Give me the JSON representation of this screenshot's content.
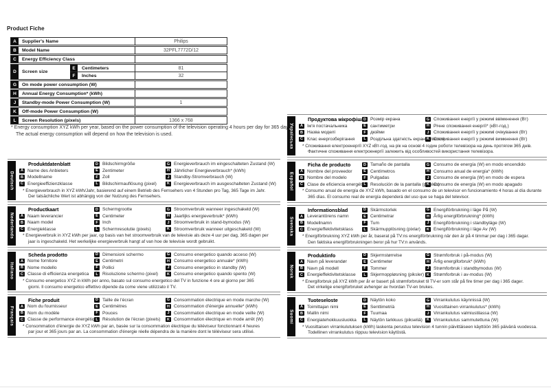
{
  "page": {
    "heading": "Product Fiche"
  },
  "keys": {
    "a": "A",
    "b": "B",
    "c": "C",
    "d": "D",
    "e": "E",
    "f": "F",
    "g": "G",
    "h": "H",
    "j": "J",
    "k": "K",
    "l": "L"
  },
  "table": {
    "rows_top": [
      {
        "key": "A",
        "label": "Supplier's Name",
        "value": "Philips"
      },
      {
        "key": "B",
        "label": "Model Name",
        "value": "32PFL7772D/12"
      },
      {
        "key": "C",
        "label": "Energy Efficiency Class",
        "value": ""
      }
    ],
    "screen": {
      "key": "D",
      "label": "Screen size",
      "cm_key": "E",
      "cm_label": "Centimeters",
      "cm_value": "81",
      "in_key": "F",
      "in_label": "Inches",
      "in_value": "32"
    },
    "rows_bottom": [
      {
        "key": "G",
        "label": "On mode power consumption (W)",
        "value": ""
      },
      {
        "key": "H",
        "label": "Annual Energy Consumption* (kWh)",
        "value": ""
      },
      {
        "key": "J",
        "label": "Standby-mode Power Consumption (W)",
        "value": "1"
      },
      {
        "key": "K",
        "label": "Off-mode Power Consumption (W)",
        "value": ""
      },
      {
        "key": "L",
        "label": "Screen Resolution (pixels)",
        "value": "1366 x 768"
      }
    ]
  },
  "footnote": {
    "line1": "* Energy consumption XYZ kWh per year, based on the power consumption of the television operating 4 hours per day for 365 days.",
    "line2": "The actual energy consumption will depend on how the television is used."
  },
  "sections_left": [
    {
      "language": "Deutsch",
      "title": "Produktdatenblatt",
      "a": "Name des Anbieters",
      "b": "Modellname",
      "c": "Energieeffizienzklasse",
      "d": "Bildschirmgröße",
      "e": "Zentimeter",
      "f": "Zoll",
      "l": "Bildschirmauflösung (pixel)",
      "g": "Energieverbrauch im eingeschalteten Zustand (W)",
      "h": "Jährlicher Energieverbrauch* (kWh)",
      "j": "Standby-Stromverbrauch (W)",
      "k": "Energieverbrauch im ausgeschalteten Zustand (W)",
      "note1": "* Energieverbrauch in XYZ kWh/Jahr, basierend auf einem Betrieb des Fernsehers von 4 Stunden pro Tag, 365 Tage im Jahr.",
      "note2": "Der tatsächliche Wert ist abhängig von der Nutzung des Fernsehers."
    },
    {
      "language": "Nederlands",
      "title": "Productkaart",
      "a": "Naam leverancier",
      "b": "Naam model",
      "c": "Energieklasse",
      "d": "Schermgrootte",
      "e": "Centimeter",
      "f": "Inch",
      "l": "Schermresolutie (pixels)",
      "g": "Stroomverbruik wanneer ingeschakeld (W)",
      "h": "Jaarlijks energieverbruik* (kWh)",
      "j": "Stroomverbruik in stand-bymodus (W)",
      "k": "Stroomverbruik wanneer uitgeschakeld (W)",
      "note1": "* Energieverbruik in XYZ kWh per jaar, op basis van het stroomverbruik van de televisie als deze 4 uur per dag, 365 dagen per",
      "note2": "jaar is ingeschakeld. Het werkelijke energieverbruik hangt af van hoe de televisie wordt gebruikt."
    },
    {
      "language": "Italiano",
      "title": "Scheda prodotto",
      "a": "Nome fornitore",
      "b": "Nome modello",
      "c": "Classe di efficienza energetica",
      "d": "Dimensioni schermo",
      "e": "Centimetri",
      "f": "Pollici",
      "l": "Risoluzione schermo (pixel)",
      "g": "Consumo energetico quando acceso (W)",
      "h": "Consumo energetico annuale* (kWh)",
      "j": "Consumo energetico in standby (W)",
      "k": "Consumo energetico quando spento (W)",
      "note1": "* Consumo energetico XYZ in kWh per anno, basato sul consumo energetico del TV in funzione 4 ore al giorno per 365",
      "note2": "giorni. Il consumo energetico effettivo dipende da come viene utilizzato il TV."
    },
    {
      "language": "Français",
      "title": "Fiche produit",
      "a": "Nom du fournisseur",
      "b": "Nom du modèle",
      "c": "Classe de performance énergétique",
      "d": "Taille de l'écran",
      "e": "Centimètres",
      "f": "Pouces",
      "l": "Résolution de l'écran (pixels)",
      "g": "Consommation électrique en mode marche (W)",
      "h": "Consommation d'énergie annuelle* (kWh)",
      "j": "Consommation électrique en mode veille (W)",
      "k": "Consommation électrique en mode arrêt (W)",
      "note1": "* Consommation d'énergie de XYZ kWh par an, basée sur la consommation électrique du téléviseur fonctionnant 4 heures",
      "note2": "par jour et 365 jours par an. La consommation d'énergie réelle dépendra de la manière dont le téléviseur sera utilisé."
    }
  ],
  "sections_right": [
    {
      "language": "Українська",
      "title": "Продуктова мікрофіша",
      "a": "Ім'я постачальника",
      "b": "Назва моделі",
      "c": "Клас енергозберігання",
      "d": "Розмір екрана",
      "e": "сантиметри",
      "f": "дюйми",
      "l": "Роздільна здатність екрана (піксел)",
      "g": "Споживання енергії у режимі ввімкнення (Вт)",
      "h": "Річне споживання енергії* (кВт-год.)",
      "j": "Споживання енергії у режимі очікування (Вт)",
      "k": "Споживання енергії у режимі вимкнення (Вт)",
      "note1": "* Споживання електроенергії XYZ кВт-год. на рік на основі 4 годин роботи телевізора на день протягом 365 днів.",
      "note2": "Фактичне споживання електроенергії залежить від особливостей використання телевізора."
    },
    {
      "language": "Español",
      "title": "Ficha de producto",
      "a": "Nombre del proveedor",
      "b": "Nombre del modelo",
      "c": "Clase de eficiencia energética",
      "d": "Tamaño de pantalla",
      "e": "Centímetros",
      "f": "Pulgadas",
      "l": "Resolución de la pantalla (píxeles)",
      "g": "Consumo de energía (W) en modo encendido",
      "h": "Consumo anual de energía* (kWh)",
      "j": "Consumo de energía (W) en modo de espera",
      "k": "Consumo de energía (W) en modo apagado",
      "note1": "* Consumo anual de energía de XYZ kWh, basado en el consumo de un televisor en funcionamiento 4 horas al día durante",
      "note2": "365 días. El consumo real de energía dependerá del uso que se haga del televisor."
    },
    {
      "language": "Svenska",
      "title": "Informationsblad",
      "a": "Leverantörens namn",
      "b": "Modellnamn",
      "c": "Energieffektivitetsklass",
      "d": "Skärmstorlek",
      "e": "Centimetrar",
      "f": "Tum",
      "l": "Skärmupplösning (pixlar)",
      "g": "Energiförbrukning i läge På (W)",
      "h": "Årlig energiförbrukning* (kWh)",
      "j": "Energiförbrukning i standbyläge (W)",
      "k": "Energiförbrukning i läge Av (W)",
      "note1": "* Energiförbrukning XYZ kWh per år, baserat på TV:ns energiförbrukning när den är på 4 timmar per dag i 365 dagar.",
      "note2": "Den faktiska energiförbrukningen beror på hur TV:n används."
    },
    {
      "language": "Norsk",
      "title": "Produktinfo",
      "a": "Navn på leverandør",
      "b": "Navn på modell",
      "c": "Energieffektivitetsklasse",
      "d": "Skjermstørrelse",
      "e": "Centimeter",
      "f": "Tommer",
      "l": "Skjermoppløsning (piksler)",
      "g": "Strømforbruk i på-modus (W)",
      "h": "Årlig energiforbruk* (kWh)",
      "j": "Strømforbruk i standbymodus (W)",
      "k": "Strømforbruk i av-modus (W)",
      "note1": "* Energiforbruk på XYZ kWh per år er basert på strømforbruket til TV-er som står på fire timer per dag i 365 dager.",
      "note2": "Det virkelige energiforbruket avhenger av hvordan TV-en brukes."
    },
    {
      "language": "Suomi",
      "title": "Tuoteseloste",
      "a": "Toimittajan nimi",
      "b": "Mallin nimi",
      "c": "Energiatehokkuusluokka",
      "d": "Näytön koko",
      "e": "Senttimetriä",
      "f": "Tuumaa",
      "l": "Näytön tarkkuus (pikseliä)",
      "g": "Virrankulutus käynnissä (W)",
      "h": "Vuosittainen virrankulutus* (kWh)",
      "j": "Virrankulutus valmiustilassa (W)",
      "k": "Virrankulutus sammutettuna (W)",
      "note1": "* Vuosittaisen virrankulutuksen (kWh) laskenta perustuu television 4 tunnin päivittäiseen käyttöön 365 päivänä vuodessa.",
      "note2": "Todellinen virrankulutus riippuu television käytöstä."
    }
  ]
}
